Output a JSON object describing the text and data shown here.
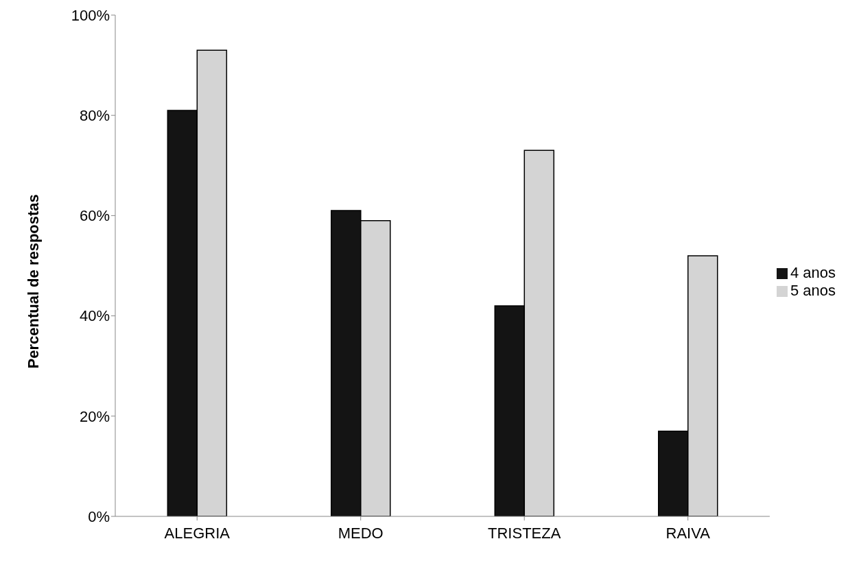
{
  "chart_data": {
    "type": "bar",
    "ylabel": "Percentual de respostas",
    "categories": [
      "ALEGRIA",
      "MEDO",
      "TRISTEZA",
      "RAIVA"
    ],
    "series": [
      {
        "name": "4 anos",
        "color": "#141414",
        "values": [
          81,
          61,
          42,
          17
        ]
      },
      {
        "name": "5 anos",
        "color": "#d4d4d4",
        "values": [
          93,
          59,
          73,
          52
        ]
      }
    ],
    "ylim": [
      0,
      100
    ],
    "yticks": [
      {
        "value": 0,
        "label": "0%"
      },
      {
        "value": 20,
        "label": "20%"
      },
      {
        "value": 40,
        "label": "40%"
      },
      {
        "value": 60,
        "label": "60%"
      },
      {
        "value": 80,
        "label": "80%"
      },
      {
        "value": 100,
        "label": "100%"
      }
    ],
    "grid": false,
    "legend": "right"
  }
}
